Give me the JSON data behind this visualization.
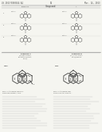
{
  "background": "#f5f5f0",
  "text_color": "#333333",
  "line_color": "#888888",
  "dark_color": "#444444",
  "header_left": "US 2013/0060024 A1",
  "header_right": "Mar. 14, 2013",
  "page_number": "52",
  "font_size_tiny": 1.8,
  "font_size_small": 2.2,
  "font_size_med": 2.8,
  "font_size_large": 3.5
}
